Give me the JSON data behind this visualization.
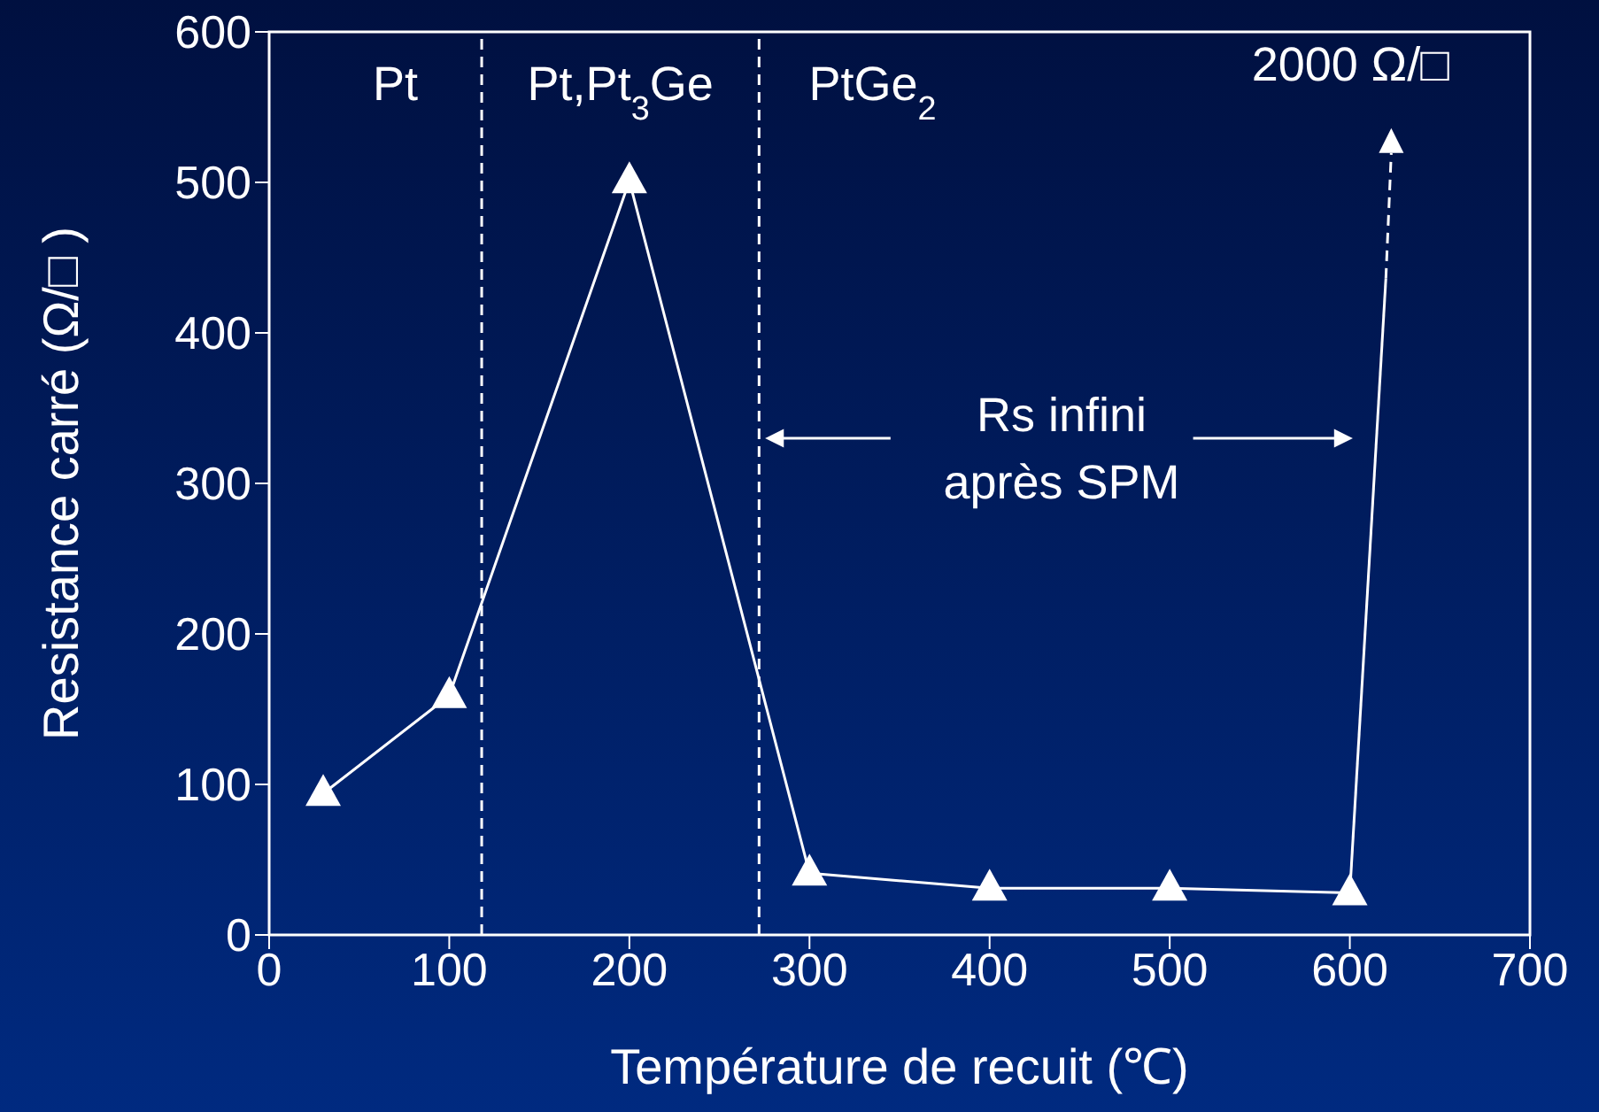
{
  "chart_data": {
    "type": "line",
    "xlabel": "Température de recuit (℃)",
    "ylabel": "Resistance carré (Ω/□ )",
    "xlim": [
      0,
      700
    ],
    "xticks": [
      0,
      100,
      200,
      300,
      400,
      500,
      600,
      700
    ],
    "ylim": [
      0,
      600
    ],
    "yticks": [
      0,
      100,
      200,
      300,
      400,
      500,
      600
    ],
    "series": [
      {
        "color": "#ffffff",
        "marker": "triangle",
        "x": [
          30,
          100,
          200,
          300,
          400,
          500,
          600
        ],
        "values": [
          94,
          159,
          501,
          41,
          31,
          31,
          28
        ]
      },
      {
        "color": "#ffffff",
        "marker": "none",
        "x": [
          600,
          620
        ],
        "values": [
          28,
          436
        ]
      }
    ],
    "ref_lines": [
      {
        "axis": "x",
        "value": 118,
        "color": "#ffffff",
        "line_style": "dashed"
      },
      {
        "axis": "x",
        "value": 272,
        "color": "#ffffff",
        "line_style": "dashed"
      }
    ],
    "annotations": [
      "Pt",
      "Pt,Pt$_{3}$Ge",
      "PtGe$_{2}$",
      "Rs infini",
      "après SPM",
      {
        "text": "2000 Ω/□",
        "x": 620,
        "y": 436
      }
    ]
  }
}
